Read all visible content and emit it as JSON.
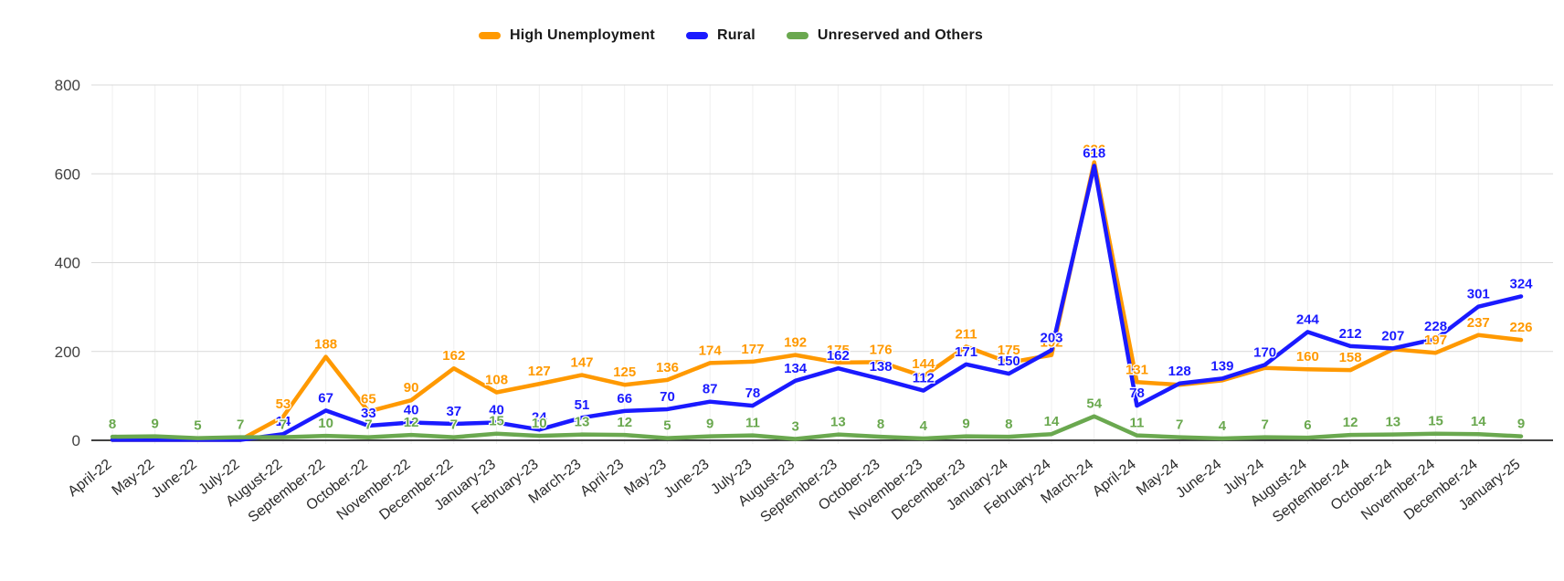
{
  "chart": {
    "background": "#ffffff",
    "legend_position": "top",
    "grid": true,
    "colors": {
      "high_unemployment": "#ff9900",
      "rural": "#1a1aff",
      "unreserved": "#6aa84f",
      "gridline": "#d9d9d9",
      "vertical_gridline": "#efefef",
      "zero_axis": "#424242",
      "y_label": "#424242",
      "x_label": "#2b2b2b"
    }
  },
  "chart_data": {
    "type": "line",
    "title": "",
    "xlabel": "",
    "ylabel": "",
    "ylim": [
      0,
      800
    ],
    "y_ticks": [
      0,
      200,
      400,
      600,
      800
    ],
    "legend_position": "top",
    "grid": true,
    "categories": [
      "April-22",
      "May-22",
      "June-22",
      "July-22",
      "August-22",
      "September-22",
      "October-22",
      "November-22",
      "December-22",
      "January-23",
      "February-23",
      "March-23",
      "April-23",
      "May-23",
      "June-23",
      "July-23",
      "August-23",
      "September-23",
      "October-23",
      "November-23",
      "December-23",
      "January-24",
      "February-24",
      "March-24",
      "April-24",
      "May-24",
      "June-24",
      "July-24",
      "August-24",
      "September-24",
      "October-24",
      "November-24",
      "December-24",
      "January-25"
    ],
    "series": [
      {
        "name": "High Unemployment",
        "color": "#ff9900",
        "values": [
          1,
          1,
          1,
          1,
          53,
          188,
          65,
          90,
          162,
          108,
          127,
          147,
          125,
          136,
          174,
          177,
          192,
          175,
          176,
          144,
          211,
          175,
          192,
          626,
          131,
          125,
          135,
          163,
          160,
          158,
          205,
          197,
          237,
          226
        ],
        "label_visible": [
          false,
          false,
          false,
          false,
          true,
          true,
          true,
          true,
          true,
          true,
          true,
          true,
          true,
          true,
          true,
          true,
          true,
          true,
          true,
          true,
          true,
          true,
          true,
          true,
          true,
          false,
          false,
          false,
          true,
          true,
          false,
          true,
          true,
          true
        ]
      },
      {
        "name": "Rural",
        "color": "#1a1aff",
        "values": [
          1,
          1,
          1,
          1,
          14,
          67,
          33,
          40,
          37,
          40,
          24,
          51,
          66,
          70,
          87,
          78,
          134,
          162,
          138,
          112,
          171,
          150,
          203,
          618,
          78,
          128,
          139,
          170,
          244,
          212,
          207,
          228,
          301,
          324
        ],
        "label_visible": [
          false,
          false,
          false,
          false,
          true,
          true,
          true,
          true,
          true,
          true,
          true,
          true,
          true,
          true,
          true,
          true,
          true,
          true,
          true,
          true,
          true,
          true,
          true,
          true,
          true,
          true,
          true,
          true,
          true,
          true,
          true,
          true,
          true,
          true
        ]
      },
      {
        "name": "Unreserved and Others",
        "color": "#6aa84f",
        "values": [
          8,
          9,
          5,
          7,
          7,
          10,
          7,
          12,
          7,
          15,
          10,
          13,
          12,
          5,
          9,
          11,
          3,
          13,
          8,
          4,
          9,
          8,
          14,
          54,
          11,
          7,
          4,
          7,
          6,
          12,
          13,
          15,
          14,
          9
        ],
        "label_visible": [
          true,
          true,
          true,
          true,
          true,
          true,
          true,
          true,
          true,
          true,
          true,
          true,
          true,
          true,
          true,
          true,
          true,
          true,
          true,
          true,
          true,
          true,
          true,
          true,
          true,
          true,
          true,
          true,
          true,
          true,
          true,
          true,
          true,
          true
        ]
      }
    ]
  }
}
